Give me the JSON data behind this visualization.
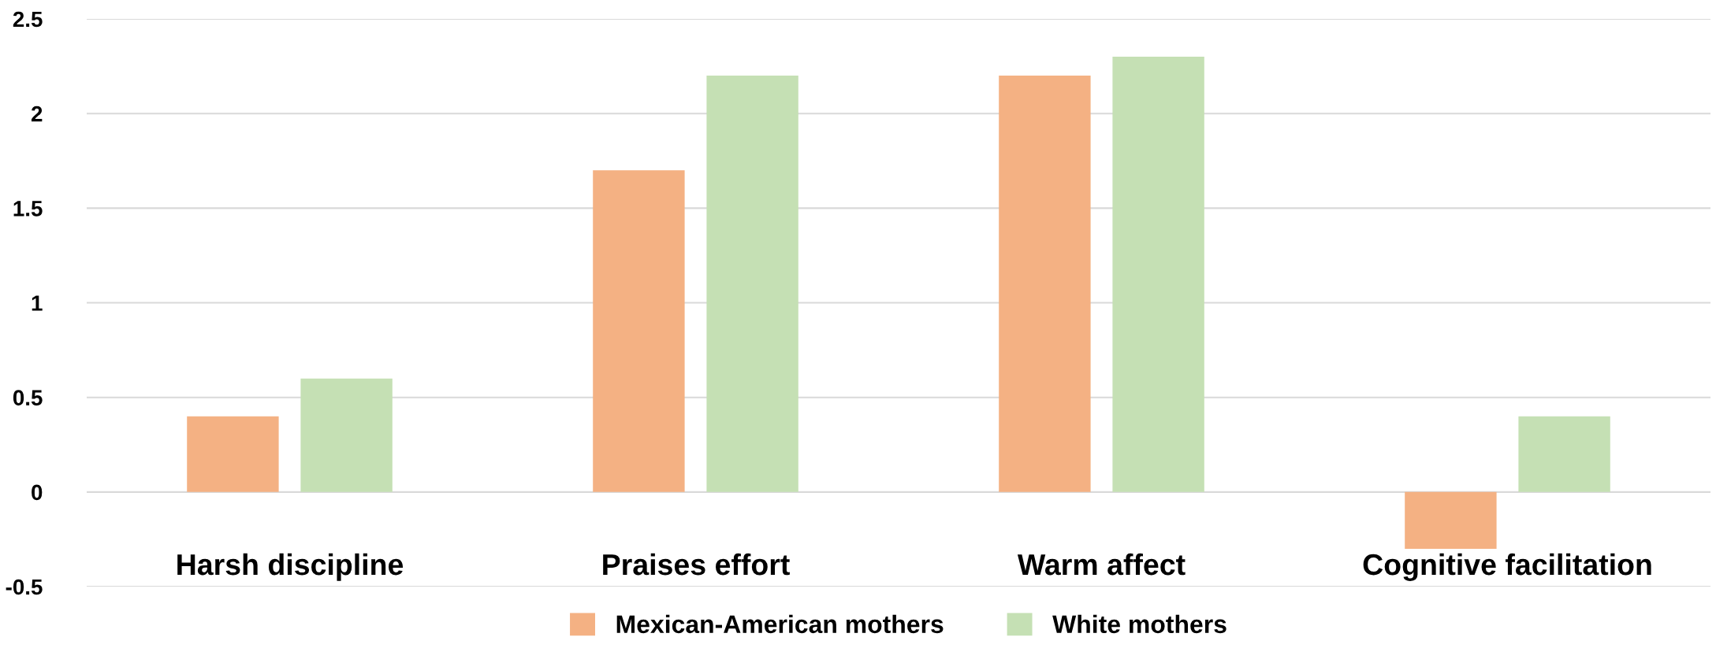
{
  "chart_data": {
    "type": "bar",
    "categories": [
      "Harsh discipline",
      "Praises effort",
      "Warm affect",
      "Cognitive facilitation"
    ],
    "series": [
      {
        "name": "Mexican-American mothers",
        "color": "#f4b183",
        "values": [
          0.4,
          1.7,
          2.2,
          -0.3
        ]
      },
      {
        "name": "White mothers",
        "color": "#c5e0b4",
        "values": [
          0.6,
          2.2,
          2.3,
          0.4
        ]
      }
    ],
    "ylim": [
      -0.5,
      2.5
    ],
    "yticks": [
      {
        "value": -0.5,
        "label": "-0.5"
      },
      0,
      0.5,
      1,
      1.5,
      2,
      2.5
    ],
    "grid": "y",
    "legend": "bottom"
  }
}
